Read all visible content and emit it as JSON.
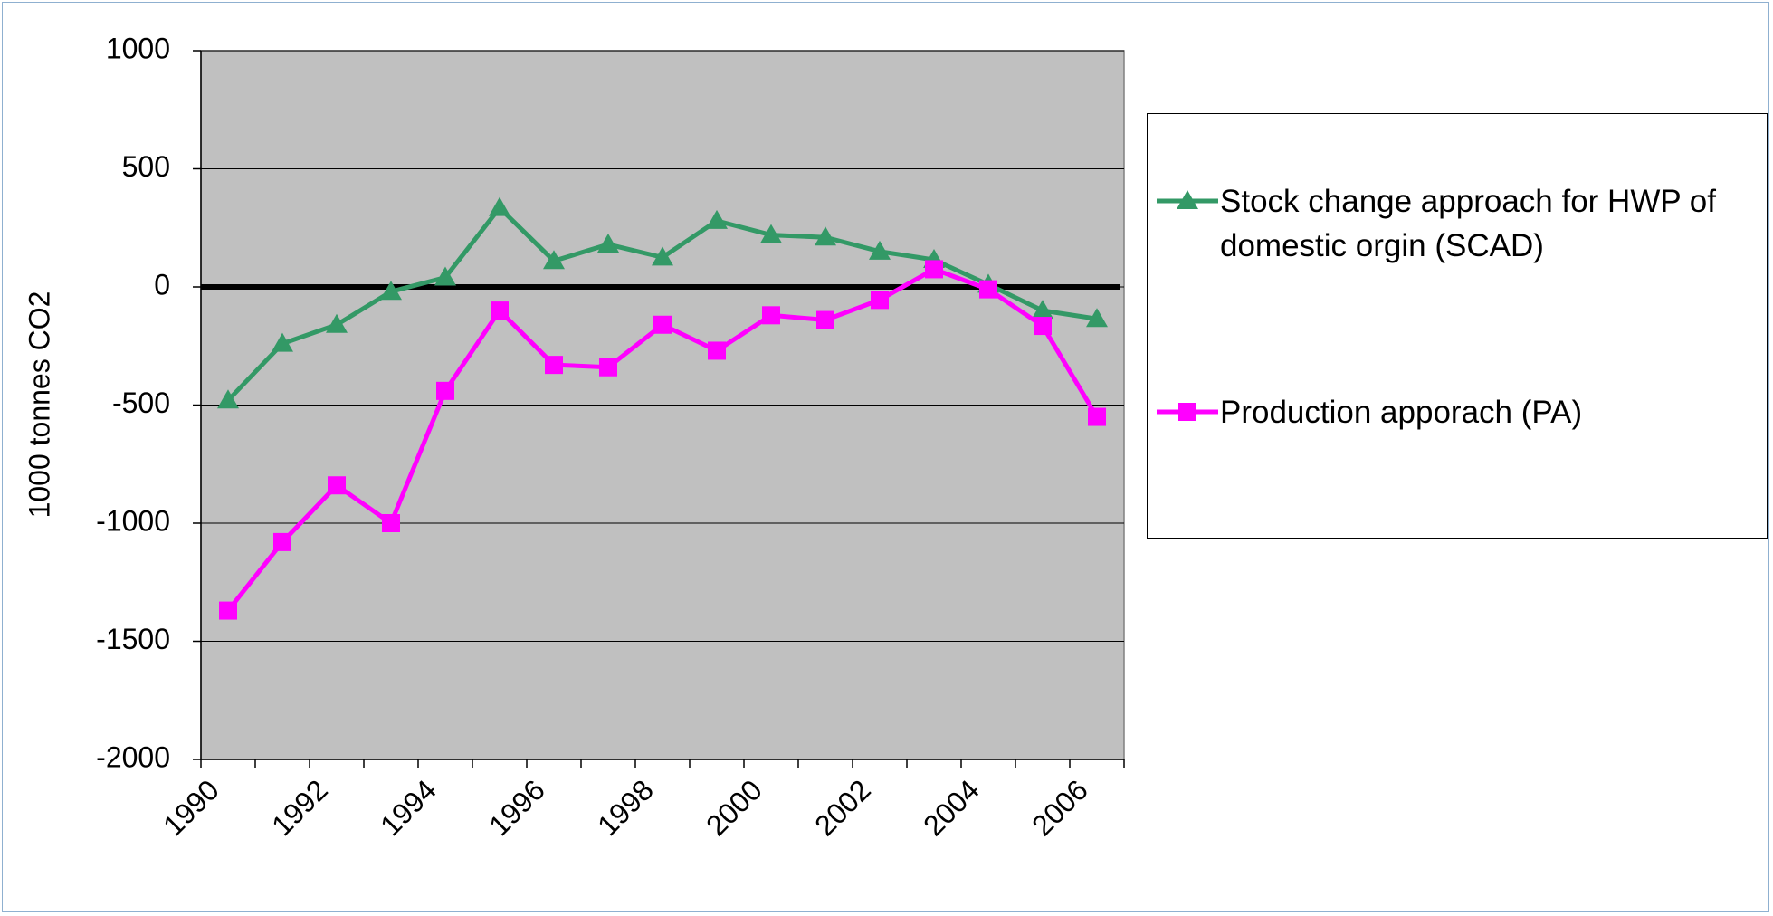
{
  "chart_data": {
    "type": "line",
    "ylabel": "1000 tonnes CO2",
    "categories": [
      "1990",
      null,
      "1992",
      null,
      "1994",
      null,
      "1996",
      null,
      "1998",
      null,
      "2000",
      null,
      "2002",
      null,
      "2004",
      null,
      "2006"
    ],
    "series": [
      {
        "name": "Stock change approach for HWP of domestic orgin (SCAD)",
        "color": "#339966",
        "marker": "triangle",
        "values": [
          -480,
          -240,
          -160,
          -20,
          40,
          335,
          110,
          180,
          125,
          280,
          220,
          210,
          150,
          115,
          10,
          -100,
          -135
        ]
      },
      {
        "name": "Production apporach (PA)",
        "color": "#ff00ff",
        "marker": "square",
        "values": [
          -1370,
          -1080,
          -840,
          -1000,
          -440,
          -100,
          -330,
          -340,
          -160,
          -270,
          -120,
          -140,
          -55,
          75,
          -10,
          -165,
          -550
        ]
      }
    ],
    "ylim": [
      -2000,
      1000
    ],
    "yticks": [
      -2000,
      -1500,
      -1000,
      -500,
      0,
      500,
      1000
    ],
    "grid": true,
    "background": "#c0c0c0",
    "legend": "right"
  }
}
